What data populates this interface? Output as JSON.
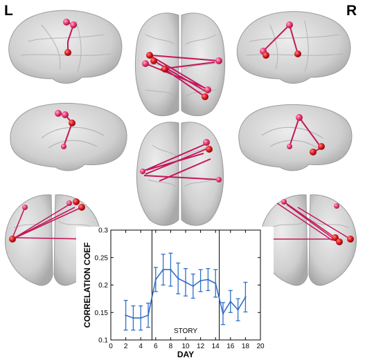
{
  "side_labels": {
    "left": "L",
    "right": "R"
  },
  "colors": {
    "node": "#e8336f",
    "node_hot": "#d9141e",
    "edge": "#c2185b",
    "brain_fill": "#c9c9c9",
    "brain_stroke": "#9a9a9a",
    "series": "#2e6fc8"
  },
  "chart_data": {
    "type": "line",
    "xlabel": "DAY",
    "ylabel": "CORRELATION COEF",
    "xlim": [
      0,
      20
    ],
    "ylim": [
      0.1,
      0.3
    ],
    "x_ticks": [
      0,
      2,
      4,
      6,
      8,
      10,
      12,
      14,
      16,
      18,
      20
    ],
    "y_ticks": [
      0.1,
      0.15,
      0.2,
      0.25,
      0.3
    ],
    "y_tick_labels": [
      "0.1",
      "0.15",
      "0.2",
      "0.25",
      "0.3"
    ],
    "grid": false,
    "annotation": "STORY",
    "vertical_lines": [
      5.5,
      14.5
    ],
    "series": [
      {
        "x": [
          2,
          3,
          4,
          5,
          6,
          7,
          8,
          9,
          10,
          11,
          12,
          13,
          14,
          15,
          16,
          17,
          18
        ],
        "y": [
          0.145,
          0.14,
          0.14,
          0.145,
          0.21,
          0.228,
          0.228,
          0.212,
          0.205,
          0.198,
          0.208,
          0.21,
          0.203,
          0.148,
          0.17,
          0.155,
          0.178
        ],
        "error": [
          0.027,
          0.022,
          0.022,
          0.022,
          0.022,
          0.028,
          0.03,
          0.028,
          0.025,
          0.022,
          0.02,
          0.02,
          0.025,
          0.02,
          0.02,
          0.02,
          0.027
        ]
      }
    ]
  }
}
